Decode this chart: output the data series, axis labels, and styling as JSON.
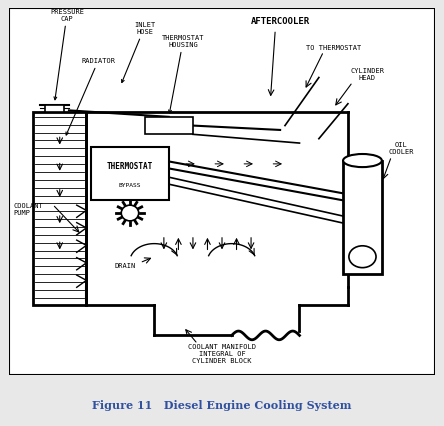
{
  "title": "Figure 11   Diesel Engine Cooling System",
  "title_color": "#3050a0",
  "background_color": "#e8e8e8",
  "diagram_bg": "#ffffff",
  "border_color": "#000000",
  "line_color": "#000000",
  "labels": {
    "pressure_cap": "PRESSURE\nCAP",
    "radiator": "RADIATOR",
    "inlet_hose": "INLET\nHOSE",
    "thermostat_housing": "THERMOSTAT\nHOUSING",
    "aftercooler": "AFTERCOOLER",
    "to_thermostat": "TO THERMOSTAT",
    "cylinder_head": "CYLINDER\nHEAD",
    "oil_cooler": "OIL\nCOOLER",
    "thermostat": "THERMOSTAT",
    "bypass": "BYPASS",
    "coolant_pump": "COOLANT\nPUMP",
    "drain": "DRAIN",
    "coolant_manifold": "COOLANT MANIFOLD\nINTEGRAL OF\nCYLINDER BLOCK"
  },
  "xlim": [
    0,
    44
  ],
  "ylim": [
    0,
    42
  ]
}
